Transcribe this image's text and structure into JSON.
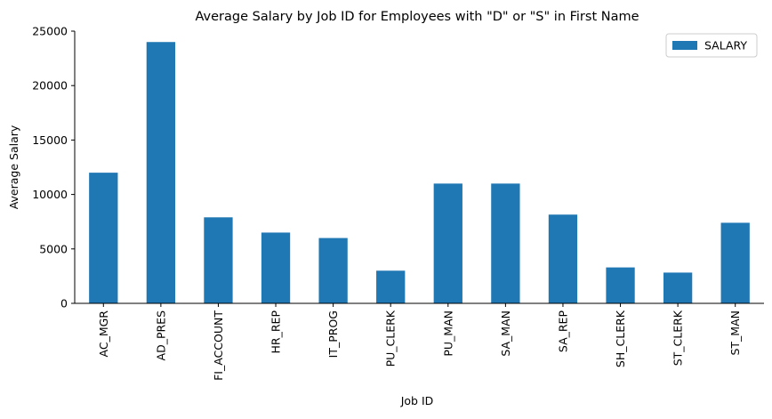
{
  "chart_data": {
    "type": "bar",
    "title": "Average Salary by Job ID for Employees with \"D\" or \"S\" in First Name",
    "xlabel": "Job ID",
    "ylabel": "Average Salary",
    "categories": [
      "AC_MGR",
      "AD_PRES",
      "FI_ACCOUNT",
      "HR_REP",
      "IT_PROG",
      "PU_CLERK",
      "PU_MAN",
      "SA_MAN",
      "SA_REP",
      "SH_CLERK",
      "ST_CLERK",
      "ST_MAN"
    ],
    "series": [
      {
        "name": "SALARY",
        "values": [
          12000,
          24000,
          7900,
          6500,
          6000,
          3000,
          11000,
          11000,
          8150,
          3300,
          2825,
          7400
        ],
        "color": "#1f77b4"
      }
    ],
    "ylim": [
      0,
      25000
    ],
    "yticks": [
      0,
      5000,
      10000,
      15000,
      20000,
      25000
    ],
    "grid": false,
    "legend_position": "top-right"
  }
}
